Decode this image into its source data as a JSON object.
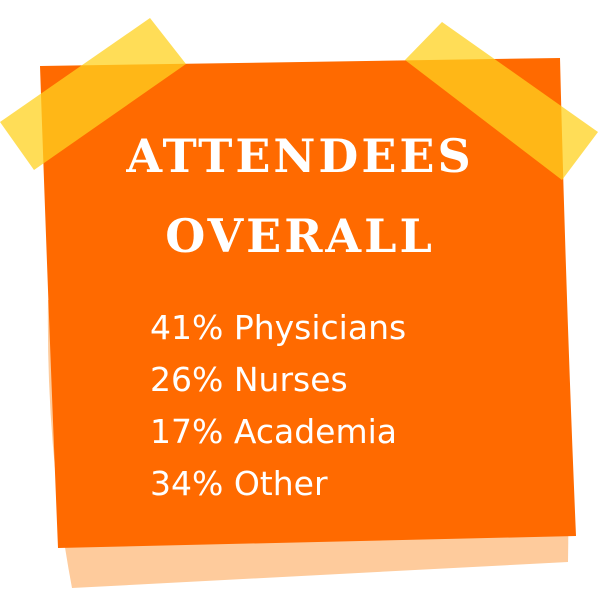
{
  "title": [
    "ATTENDEES",
    "OVERALL"
  ],
  "items": [
    "41% Physicians",
    "26% Nurses",
    "17% Academia",
    "34% Other"
  ]
}
